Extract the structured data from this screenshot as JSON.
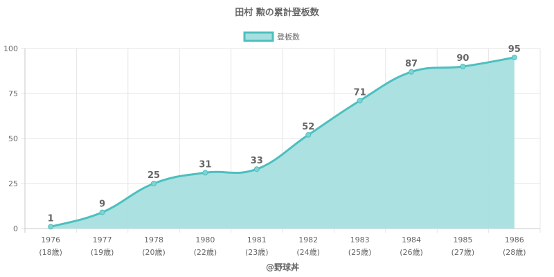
{
  "chart_data": {
    "type": "area",
    "title": "田村 勲の累計登板数",
    "legend": {
      "label": "登板数",
      "position": "top"
    },
    "categories": [
      [
        "1976",
        "(18歳)"
      ],
      [
        "1977",
        "(19歳)"
      ],
      [
        "1978",
        "(20歳)"
      ],
      [
        "1980",
        "(22歳)"
      ],
      [
        "1981",
        "(23歳)"
      ],
      [
        "1982",
        "(24歳)"
      ],
      [
        "1983",
        "(25歳)"
      ],
      [
        "1984",
        "(26歳)"
      ],
      [
        "1985",
        "(27歳)"
      ],
      [
        "1986",
        "(28歳)"
      ]
    ],
    "series": [
      {
        "name": "登板数",
        "values": [
          1,
          9,
          25,
          31,
          33,
          52,
          71,
          87,
          90,
          95
        ]
      }
    ],
    "ylim": [
      0,
      100
    ],
    "yticks": [
      0,
      25,
      50,
      75,
      100
    ],
    "grid": true,
    "colors": {
      "line": "#4dbfbf",
      "fill": "#a6dfdf",
      "grid": "#e5e5e5",
      "axis": "#c8c8c8"
    },
    "credit": "@野球丼"
  }
}
